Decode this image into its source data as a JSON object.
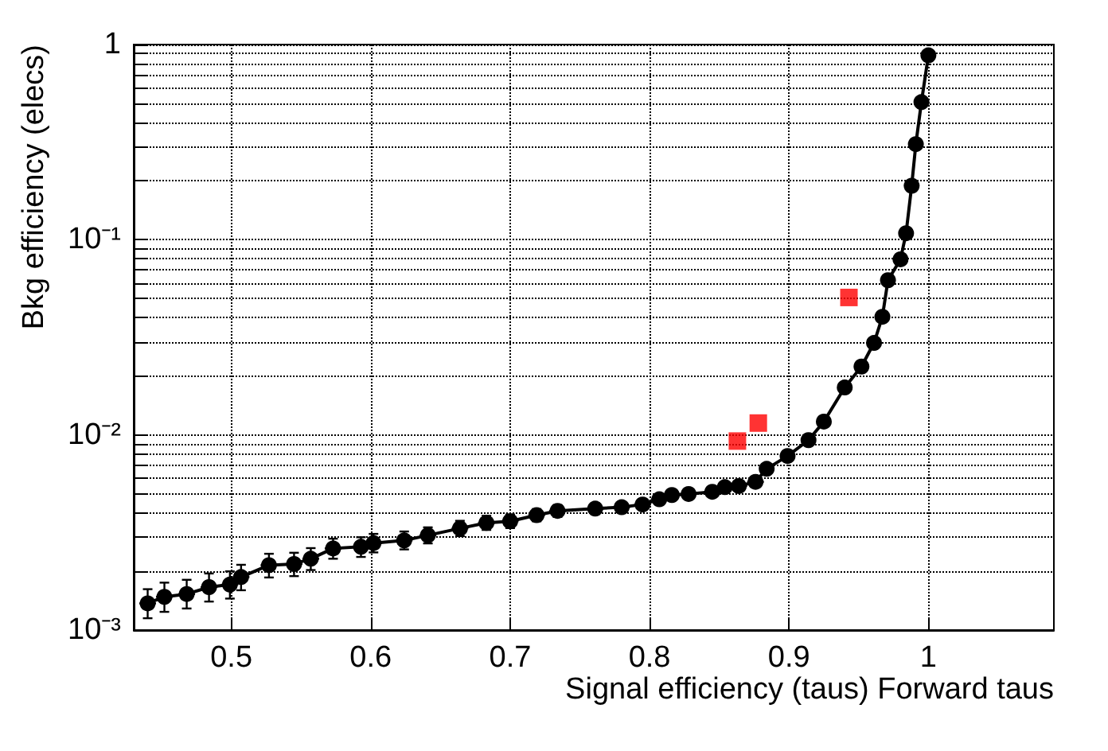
{
  "chart_data": {
    "type": "line",
    "xlabel": "Signal efficiency (taus) Forward taus",
    "ylabel": "Bkg efficiency (elecs)",
    "log": "y",
    "grid": true,
    "xlim": [
      0.43,
      1.09
    ],
    "ylim": [
      0.001,
      1
    ],
    "xticks": [
      0.5,
      0.6,
      0.7,
      0.8,
      0.9,
      1
    ],
    "yticks": [
      {
        "value": 0.001,
        "label": "10⁻³"
      },
      {
        "value": 0.002,
        "label": null
      },
      {
        "value": 0.003,
        "label": null
      },
      {
        "value": 0.004,
        "label": null
      },
      {
        "value": 0.005,
        "label": null
      },
      {
        "value": 0.006,
        "label": null
      },
      {
        "value": 0.007,
        "label": null
      },
      {
        "value": 0.008,
        "label": null
      },
      {
        "value": 0.009,
        "label": null
      },
      {
        "value": 0.01,
        "label": "10⁻²"
      },
      {
        "value": 0.02,
        "label": null
      },
      {
        "value": 0.03,
        "label": null
      },
      {
        "value": 0.04,
        "label": null
      },
      {
        "value": 0.05,
        "label": null
      },
      {
        "value": 0.06,
        "label": null
      },
      {
        "value": 0.07,
        "label": null
      },
      {
        "value": 0.08,
        "label": null
      },
      {
        "value": 0.09,
        "label": null
      },
      {
        "value": 0.1,
        "label": "10⁻¹"
      },
      {
        "value": 0.2,
        "label": null
      },
      {
        "value": 0.3,
        "label": null
      },
      {
        "value": 0.4,
        "label": null
      },
      {
        "value": 0.5,
        "label": null
      },
      {
        "value": 0.6,
        "label": null
      },
      {
        "value": 0.7,
        "label": null
      },
      {
        "value": 0.8,
        "label": null
      },
      {
        "value": 0.9,
        "label": null
      },
      1
    ],
    "series": [
      {
        "color": "#000000",
        "marker": "circle",
        "line_style": "solid",
        "x": [
          0.44,
          0.452,
          0.468,
          0.484,
          0.499,
          0.507,
          0.527,
          0.545,
          0.557,
          0.573,
          0.593,
          0.602,
          0.624,
          0.641,
          0.664,
          0.683,
          0.7,
          0.719,
          0.734,
          0.761,
          0.78,
          0.795,
          0.807,
          0.816,
          0.828,
          0.845,
          0.854,
          0.864,
          0.876,
          0.884,
          0.899,
          0.914,
          0.925,
          0.94,
          0.952,
          0.961,
          0.967,
          0.971,
          0.98,
          0.984,
          0.988,
          0.991,
          0.995,
          1.0
        ],
        "values": [
          0.00137,
          0.00148,
          0.00153,
          0.00166,
          0.00171,
          0.00187,
          0.00215,
          0.00218,
          0.00232,
          0.00262,
          0.00267,
          0.00279,
          0.00288,
          0.00306,
          0.00332,
          0.00354,
          0.00361,
          0.00388,
          0.00408,
          0.00419,
          0.00426,
          0.0044,
          0.00468,
          0.00492,
          0.00498,
          0.00511,
          0.0054,
          0.00547,
          0.00575,
          0.0067,
          0.0078,
          0.0094,
          0.0117,
          0.0175,
          0.0224,
          0.0296,
          0.0403,
          0.062,
          0.0794,
          0.108,
          0.189,
          0.309,
          0.507,
          0.88
        ],
        "errors": [
          [
            0.00115,
            0.00162
          ],
          [
            0.00124,
            0.00175
          ],
          [
            0.00129,
            0.00181
          ],
          [
            0.0014,
            0.00195
          ],
          [
            0.00145,
            0.002
          ],
          [
            0.0016,
            0.00216
          ],
          [
            0.00186,
            0.00246
          ],
          [
            0.00189,
            0.00249
          ],
          [
            0.00203,
            0.00263
          ],
          [
            0.00232,
            0.00294
          ],
          [
            0.00237,
            0.00299
          ],
          [
            0.0025,
            0.00311
          ],
          [
            0.00259,
            0.0032
          ],
          [
            0.00278,
            0.00336
          ],
          [
            0.00303,
            0.00363
          ],
          [
            0.00326,
            0.00385
          ],
          [
            0.00333,
            0.00391
          ],
          [
            0.00361,
            0.00417
          ],
          [
            0.0038,
            0.00437
          ],
          [
            0.00393,
            0.00447
          ],
          [
            0.004,
            0.00454
          ],
          [
            0.00414,
            0.00468
          ],
          [
            0.00443,
            0.00495
          ],
          [
            0.00467,
            0.00518
          ],
          [
            0.00473,
            0.00524
          ],
          [
            0.00486,
            0.00537
          ],
          [
            0.00516,
            0.00565
          ],
          [
            0.00523,
            0.00572
          ],
          [
            0.00555,
            0.00596
          ],
          null,
          null,
          null,
          null,
          null,
          null,
          null,
          null,
          null,
          null,
          null,
          null,
          null,
          null,
          null
        ],
        "xerrors": [
          0.006,
          0.006,
          0.006,
          0.006,
          0.006,
          0.006,
          0.006,
          0.006,
          0.006,
          0.006,
          0.006,
          0.006,
          0.006,
          0.006,
          0.006,
          0.006,
          0.006,
          0.006,
          0.006,
          0.006,
          0.006,
          0.006,
          0.006,
          0.006,
          0.006,
          0.006,
          0.006,
          0.006,
          0.006,
          null,
          null,
          null,
          null,
          null,
          null,
          null,
          null,
          null,
          null,
          null,
          null,
          null,
          null,
          null
        ]
      },
      {
        "type": "scatter",
        "color": "#ff0000",
        "marker": "square",
        "x": [
          0.863,
          0.878,
          0.943
        ],
        "values": [
          0.0093,
          0.0115,
          0.0506
        ]
      }
    ]
  }
}
